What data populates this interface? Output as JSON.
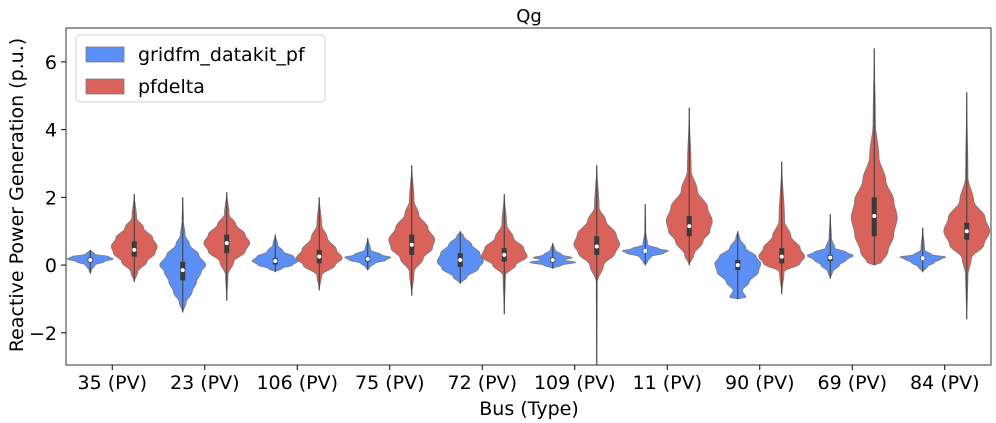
{
  "chart_data": {
    "type": "violin",
    "title": "Qg",
    "xlabel": "Bus (Type)",
    "ylabel": "Reactive Power Generation (p.u.)",
    "ylim": [
      -2.95,
      7.0
    ],
    "yticks": [
      -2,
      0,
      2,
      4,
      6
    ],
    "yticklabels": [
      "−2",
      "0",
      "2",
      "4",
      "6"
    ],
    "categories": [
      "35 (PV)",
      "23 (PV)",
      "106 (PV)",
      "75 (PV)",
      "72 (PV)",
      "109 (PV)",
      "11 (PV)",
      "90 (PV)",
      "69 (PV)",
      "84 (PV)"
    ],
    "legend_position": "top-left",
    "series": [
      {
        "name": "gridfm_datakit_pf",
        "color": "#5b8ff5",
        "violins": [
          {
            "min": -0.25,
            "max": 0.45,
            "q1": 0.08,
            "median": 0.15,
            "q3": 0.22,
            "profile": [
              [
                -0.25,
                0
              ],
              [
                -0.15,
                0.05
              ],
              [
                0.0,
                0.2
              ],
              [
                0.1,
                0.6
              ],
              [
                0.18,
                1
              ],
              [
                0.25,
                0.8
              ],
              [
                0.32,
                0.2
              ],
              [
                0.45,
                0
              ]
            ]
          },
          {
            "min": -1.4,
            "max": 2.0,
            "q1": -0.45,
            "median": -0.15,
            "q3": 0.1,
            "profile": [
              [
                -1.4,
                0
              ],
              [
                -1.1,
                0.15
              ],
              [
                -0.8,
                0.4
              ],
              [
                -0.5,
                0.6
              ],
              [
                -0.2,
                0.8
              ],
              [
                0.0,
                1
              ],
              [
                0.3,
                0.7
              ],
              [
                0.6,
                0.3
              ],
              [
                0.9,
                0.1
              ],
              [
                1.3,
                0.03
              ],
              [
                2.0,
                0
              ]
            ]
          },
          {
            "min": -0.2,
            "max": 0.9,
            "q1": 0.02,
            "median": 0.12,
            "q3": 0.2,
            "profile": [
              [
                -0.2,
                0
              ],
              [
                -0.1,
                0.3
              ],
              [
                0.0,
                0.75
              ],
              [
                0.12,
                1
              ],
              [
                0.25,
                0.8
              ],
              [
                0.4,
                0.35
              ],
              [
                0.6,
                0.1
              ],
              [
                0.9,
                0
              ]
            ]
          },
          {
            "min": -0.15,
            "max": 0.8,
            "q1": 0.1,
            "median": 0.18,
            "q3": 0.25,
            "profile": [
              [
                -0.15,
                0
              ],
              [
                -0.05,
                0.1
              ],
              [
                0.05,
                0.3
              ],
              [
                0.15,
                0.8
              ],
              [
                0.23,
                1
              ],
              [
                0.3,
                0.6
              ],
              [
                0.45,
                0.12
              ],
              [
                0.8,
                0
              ]
            ]
          },
          {
            "min": -0.55,
            "max": 1.0,
            "q1": -0.05,
            "median": 0.15,
            "q3": 0.35,
            "profile": [
              [
                -0.55,
                0
              ],
              [
                -0.35,
                0.3
              ],
              [
                -0.1,
                0.8
              ],
              [
                0.1,
                1
              ],
              [
                0.35,
                0.85
              ],
              [
                0.6,
                0.5
              ],
              [
                0.85,
                0.15
              ],
              [
                1.0,
                0
              ]
            ]
          },
          {
            "min": -0.1,
            "max": 0.65,
            "q1": 0.08,
            "median": 0.15,
            "q3": 0.22,
            "profile": [
              [
                -0.1,
                0
              ],
              [
                0.0,
                0.4
              ],
              [
                0.08,
                1
              ],
              [
                0.15,
                0.5
              ],
              [
                0.22,
                0.85
              ],
              [
                0.3,
                0.4
              ],
              [
                0.45,
                0.1
              ],
              [
                0.65,
                0
              ]
            ]
          },
          {
            "min": 0.0,
            "max": 1.8,
            "q1": 0.38,
            "median": 0.42,
            "q3": 0.46,
            "profile": [
              [
                0.0,
                0
              ],
              [
                0.1,
                0.1
              ],
              [
                0.25,
                0.25
              ],
              [
                0.35,
                0.8
              ],
              [
                0.42,
                1
              ],
              [
                0.48,
                0.6
              ],
              [
                0.6,
                0.1
              ],
              [
                1.0,
                0.02
              ],
              [
                1.8,
                0
              ]
            ]
          },
          {
            "min": -1.0,
            "max": 1.0,
            "q1": -0.15,
            "median": 0.0,
            "q3": 0.15,
            "profile": [
              [
                -1.0,
                0
              ],
              [
                -0.95,
                0.35
              ],
              [
                -0.75,
                0.2
              ],
              [
                -0.5,
                0.5
              ],
              [
                -0.2,
                0.9
              ],
              [
                0.05,
                1
              ],
              [
                0.25,
                0.8
              ],
              [
                0.5,
                0.35
              ],
              [
                0.8,
                0.08
              ],
              [
                1.0,
                0
              ]
            ]
          },
          {
            "min": -0.4,
            "max": 1.5,
            "q1": 0.12,
            "median": 0.22,
            "q3": 0.3,
            "profile": [
              [
                -0.4,
                0
              ],
              [
                -0.2,
                0.1
              ],
              [
                0.0,
                0.4
              ],
              [
                0.15,
                0.7
              ],
              [
                0.28,
                1
              ],
              [
                0.38,
                0.7
              ],
              [
                0.5,
                0.2
              ],
              [
                0.8,
                0.05
              ],
              [
                1.5,
                0
              ]
            ]
          },
          {
            "min": -0.2,
            "max": 1.1,
            "q1": 0.15,
            "median": 0.2,
            "q3": 0.25,
            "profile": [
              [
                -0.2,
                0
              ],
              [
                -0.05,
                0.2
              ],
              [
                0.08,
                0.5
              ],
              [
                0.18,
                0.8
              ],
              [
                0.24,
                1
              ],
              [
                0.3,
                0.4
              ],
              [
                0.45,
                0.08
              ],
              [
                1.1,
                0
              ]
            ]
          }
        ]
      },
      {
        "name": "pfdelta",
        "color": "#d9625a",
        "violins": [
          {
            "min": -0.5,
            "max": 2.1,
            "q1": 0.25,
            "median": 0.45,
            "q3": 0.7,
            "profile": [
              [
                -0.5,
                0
              ],
              [
                -0.2,
                0.15
              ],
              [
                0.1,
                0.55
              ],
              [
                0.35,
                0.9
              ],
              [
                0.55,
                1
              ],
              [
                0.8,
                0.8
              ],
              [
                1.1,
                0.4
              ],
              [
                1.4,
                0.1
              ],
              [
                2.1,
                0
              ]
            ]
          },
          {
            "min": -1.05,
            "max": 2.15,
            "q1": 0.35,
            "median": 0.65,
            "q3": 0.9,
            "profile": [
              [
                -1.05,
                0
              ],
              [
                -0.3,
                0.05
              ],
              [
                0.1,
                0.3
              ],
              [
                0.4,
                0.8
              ],
              [
                0.65,
                1
              ],
              [
                0.9,
                0.8
              ],
              [
                1.2,
                0.4
              ],
              [
                1.5,
                0.1
              ],
              [
                2.15,
                0
              ]
            ]
          },
          {
            "min": -0.75,
            "max": 2.0,
            "q1": 0.05,
            "median": 0.25,
            "q3": 0.45,
            "profile": [
              [
                -0.75,
                0
              ],
              [
                -0.3,
                0.1
              ],
              [
                0.0,
                0.7
              ],
              [
                0.2,
                1
              ],
              [
                0.45,
                0.75
              ],
              [
                0.8,
                0.35
              ],
              [
                1.2,
                0.1
              ],
              [
                2.0,
                0
              ]
            ]
          },
          {
            "min": -0.9,
            "max": 2.95,
            "q1": 0.3,
            "median": 0.6,
            "q3": 0.9,
            "profile": [
              [
                -0.9,
                0
              ],
              [
                -0.2,
                0.1
              ],
              [
                0.2,
                0.5
              ],
              [
                0.5,
                0.9
              ],
              [
                0.75,
                1
              ],
              [
                1.1,
                0.7
              ],
              [
                1.5,
                0.3
              ],
              [
                1.9,
                0.1
              ],
              [
                2.95,
                0
              ]
            ]
          },
          {
            "min": -1.45,
            "max": 2.1,
            "q1": 0.1,
            "median": 0.3,
            "q3": 0.5,
            "profile": [
              [
                -1.45,
                0
              ],
              [
                -0.3,
                0.05
              ],
              [
                0.0,
                0.5
              ],
              [
                0.25,
                1
              ],
              [
                0.5,
                0.85
              ],
              [
                0.8,
                0.4
              ],
              [
                1.2,
                0.1
              ],
              [
                2.1,
                0
              ]
            ]
          },
          {
            "min": -2.95,
            "max": 2.95,
            "q1": 0.3,
            "median": 0.55,
            "q3": 0.85,
            "profile": [
              [
                -2.95,
                0
              ],
              [
                -0.5,
                0.02
              ],
              [
                0.0,
                0.3
              ],
              [
                0.35,
                0.8
              ],
              [
                0.6,
                1
              ],
              [
                0.9,
                0.85
              ],
              [
                1.3,
                0.4
              ],
              [
                1.7,
                0.1
              ],
              [
                2.95,
                0
              ]
            ]
          },
          {
            "min": 0.0,
            "max": 4.65,
            "q1": 0.85,
            "median": 1.15,
            "q3": 1.45,
            "profile": [
              [
                0.0,
                0
              ],
              [
                0.3,
                0.2
              ],
              [
                0.7,
                0.6
              ],
              [
                1.0,
                0.9
              ],
              [
                1.3,
                1
              ],
              [
                1.7,
                0.8
              ],
              [
                2.2,
                0.35
              ],
              [
                2.8,
                0.08
              ],
              [
                4.65,
                0
              ]
            ]
          },
          {
            "min": -0.85,
            "max": 3.05,
            "q1": 0.05,
            "median": 0.25,
            "q3": 0.5,
            "profile": [
              [
                -0.85,
                0
              ],
              [
                -0.2,
                0.1
              ],
              [
                0.05,
                0.8
              ],
              [
                0.25,
                1
              ],
              [
                0.5,
                0.8
              ],
              [
                0.85,
                0.4
              ],
              [
                1.3,
                0.12
              ],
              [
                3.05,
                0
              ]
            ]
          },
          {
            "min": 0.0,
            "max": 6.4,
            "q1": 0.85,
            "median": 1.45,
            "q3": 2.0,
            "profile": [
              [
                0.0,
                0
              ],
              [
                0.05,
                0.3
              ],
              [
                0.4,
                0.6
              ],
              [
                0.9,
                0.85
              ],
              [
                1.4,
                1
              ],
              [
                1.9,
                0.85
              ],
              [
                2.5,
                0.5
              ],
              [
                3.2,
                0.2
              ],
              [
                4.2,
                0.05
              ],
              [
                6.4,
                0
              ]
            ]
          },
          {
            "min": -1.6,
            "max": 5.1,
            "q1": 0.75,
            "median": 1.0,
            "q3": 1.25,
            "profile": [
              [
                -1.6,
                0
              ],
              [
                -0.3,
                0.05
              ],
              [
                0.2,
                0.2
              ],
              [
                0.6,
                0.75
              ],
              [
                1.0,
                1
              ],
              [
                1.4,
                0.8
              ],
              [
                1.9,
                0.3
              ],
              [
                2.6,
                0.05
              ],
              [
                5.1,
                0
              ]
            ]
          }
        ]
      }
    ]
  }
}
